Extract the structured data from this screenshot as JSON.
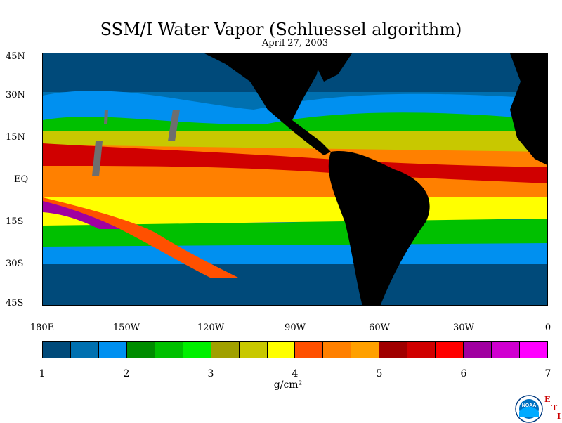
{
  "title": "SSM/I Water Vapor (Schluessel algorithm)",
  "subtitle": "April 27, 2003",
  "map": {
    "lat_labels": [
      "45N",
      "30N",
      "15N",
      "EQ",
      "15S",
      "30S",
      "45S"
    ],
    "lon_labels": [
      "180E",
      "150W",
      "120W",
      "90W",
      "60W",
      "30W",
      "0"
    ],
    "lat_range": [
      -45,
      45
    ],
    "lon_range": [
      -180,
      0
    ]
  },
  "colorbar": {
    "colors": [
      "#004a7a",
      "#0070b0",
      "#0090f0",
      "#008c00",
      "#00c000",
      "#00f000",
      "#a0a000",
      "#c8c800",
      "#ffff00",
      "#ff5000",
      "#ff8000",
      "#ffa000",
      "#a00000",
      "#d00000",
      "#ff0000",
      "#a000a0",
      "#d000d0",
      "#ff00ff"
    ],
    "tick_labels": [
      "1",
      "2",
      "3",
      "4",
      "5",
      "6",
      "7"
    ],
    "units": "g/cm²"
  },
  "colors": {
    "land": "#000000",
    "missing": "#6e6e6e"
  },
  "logo": {
    "text": "NOAA",
    "letters": [
      "E",
      "T",
      "I"
    ]
  }
}
